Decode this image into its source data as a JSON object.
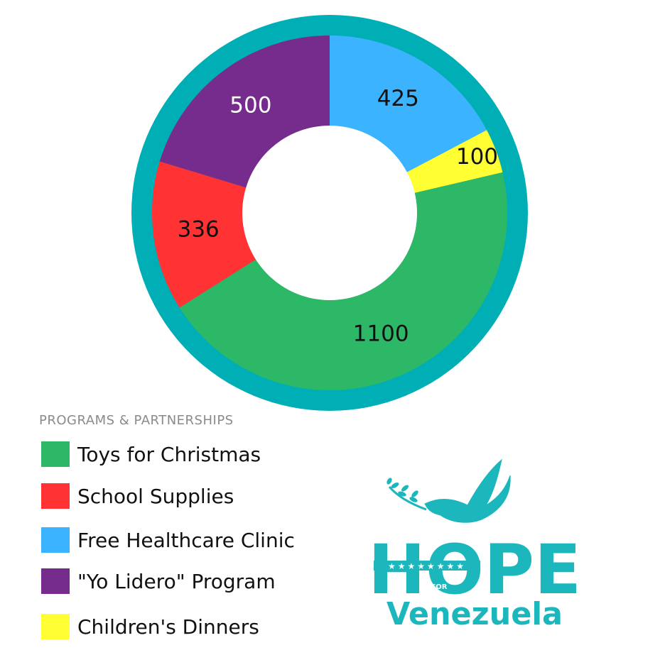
{
  "chart_data": {
    "type": "pie",
    "style": "donut",
    "title": "",
    "legend_title": "PROGRAMS & PARTNERSHIPS",
    "legend_position": "bottom-left",
    "categories": [
      "Toys for Christmas",
      "School Supplies",
      "Free Healthcare Clinic",
      "\"Yo Lidero\" Program",
      "Children's Dinners"
    ],
    "values": [
      1100,
      336,
      425,
      500,
      100
    ],
    "value_labels": [
      "1100",
      "336",
      "425",
      "500",
      "100"
    ],
    "colors": [
      "#2cb866",
      "#ff3333",
      "#3bb3ff",
      "#762c8c",
      "#ffff33"
    ],
    "label_colors": [
      "#111111",
      "#111111",
      "#111111",
      "#ffffff",
      "#111111"
    ],
    "ring_color": "#00afb5"
  },
  "logo": {
    "word": "HOPE",
    "small": "FOR",
    "country": "Venezuela",
    "color": "#1bb7bd"
  }
}
